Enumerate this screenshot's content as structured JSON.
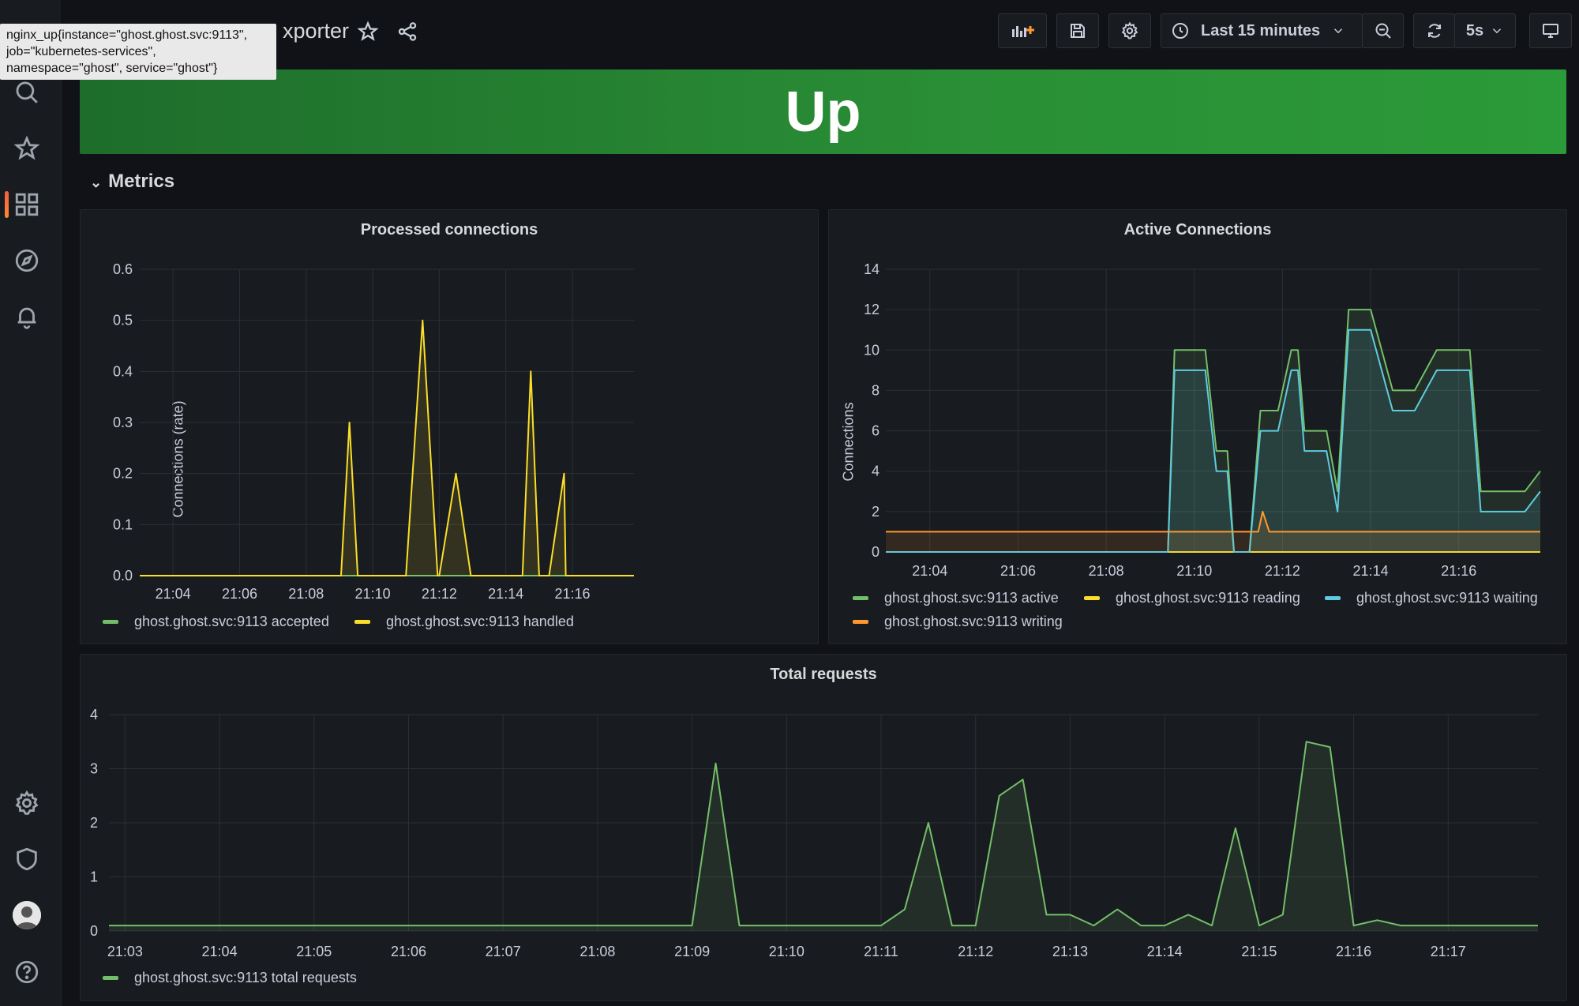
{
  "tooltip": {
    "lines": [
      "nginx_up{instance=\"ghost.ghost.svc:9113\",",
      "job=\"kubernetes-services\",",
      "namespace=\"ghost\", service=\"ghost\"}"
    ]
  },
  "header": {
    "title_partial": "xporter",
    "time_range": "Last 15 minutes",
    "refresh_interval": "5s"
  },
  "stat_panel": {
    "value": "Up",
    "color": "#2a8f36"
  },
  "row": {
    "title": "Metrics"
  },
  "colors": {
    "green": "#73bf69",
    "yellow": "#fade2a",
    "blue": "#5ecbe0",
    "orange": "#ff9830"
  },
  "chart_data": [
    {
      "type": "area",
      "title": "Processed connections",
      "ylabel": "Connections (rate)",
      "ylim": [
        0,
        0.6
      ],
      "yticks": [
        "0.0",
        "0.1",
        "0.2",
        "0.3",
        "0.4",
        "0.5",
        "0.6"
      ],
      "xticks": [
        "21:04",
        "21:06",
        "21:08",
        "21:10",
        "21:12",
        "21:14",
        "21:16"
      ],
      "xtick_minutes": [
        4,
        6,
        8,
        10,
        12,
        14,
        16
      ],
      "xlim_minutes": [
        3.0,
        17.85
      ],
      "series": [
        {
          "name": "ghost.ghost.svc:9113 accepted",
          "color": "#73bf69",
          "x": [
            3.0,
            17.85
          ],
          "y": [
            0,
            0
          ]
        },
        {
          "name": "ghost.ghost.svc:9113 handled",
          "color": "#fade2a",
          "x": [
            3.0,
            9.05,
            9.3,
            9.55,
            10.0,
            10.05,
            11.0,
            11.5,
            11.95,
            12.0,
            12.5,
            12.95,
            13.0,
            14.0,
            14.5,
            14.75,
            15.0,
            15.3,
            15.75,
            15.8,
            16.0,
            17.85
          ],
          "y": [
            0,
            0,
            0.3,
            0,
            0,
            0,
            0,
            0.5,
            0,
            0,
            0.2,
            0,
            0,
            0,
            0,
            0.4,
            0,
            0,
            0.2,
            0,
            0,
            0
          ]
        }
      ],
      "legend": [
        {
          "name": "ghost.ghost.svc:9113 accepted",
          "color": "#73bf69"
        },
        {
          "name": "ghost.ghost.svc:9113 handled",
          "color": "#fade2a"
        }
      ]
    },
    {
      "type": "area",
      "title": "Active Connections",
      "ylabel": "Connections",
      "ylim": [
        0,
        14
      ],
      "yticks": [
        "0",
        "2",
        "4",
        "6",
        "8",
        "10",
        "12",
        "14"
      ],
      "xticks": [
        "21:04",
        "21:06",
        "21:08",
        "21:10",
        "21:12",
        "21:14",
        "21:16"
      ],
      "xtick_minutes": [
        4,
        6,
        8,
        10,
        12,
        14,
        16
      ],
      "xlim_minutes": [
        3.0,
        17.85
      ],
      "series": [
        {
          "name": "ghost.ghost.svc:9113 active",
          "color": "#73bf69",
          "x": [
            3.0,
            9.2,
            9.4,
            9.55,
            10.0,
            10.25,
            10.5,
            10.75,
            10.9,
            11.25,
            11.5,
            11.75,
            11.9,
            12.2,
            12.35,
            12.5,
            12.6,
            13.0,
            13.25,
            13.5,
            13.75,
            14.0,
            14.5,
            14.75,
            15.0,
            15.5,
            15.75,
            16.0,
            16.25,
            16.5,
            17.0,
            17.25,
            17.5,
            17.85
          ],
          "y": [
            0,
            0,
            0,
            10,
            10,
            10,
            5,
            5,
            0,
            0,
            7,
            7,
            7,
            10,
            10,
            6,
            6,
            6,
            3,
            12,
            12,
            12,
            8,
            8,
            8,
            10,
            10,
            10,
            10,
            3,
            3,
            3,
            3,
            4
          ]
        },
        {
          "name": "ghost.ghost.svc:9113 reading",
          "color": "#fade2a",
          "x": [
            3.0,
            17.85
          ],
          "y": [
            0,
            0
          ]
        },
        {
          "name": "ghost.ghost.svc:9113 waiting",
          "color": "#5ecbe0",
          "x": [
            3.0,
            9.2,
            9.4,
            9.55,
            10.0,
            10.25,
            10.5,
            10.75,
            10.9,
            11.25,
            11.5,
            11.75,
            11.9,
            12.2,
            12.35,
            12.5,
            12.6,
            13.0,
            13.25,
            13.5,
            13.75,
            14.0,
            14.5,
            14.75,
            15.0,
            15.5,
            15.75,
            16.0,
            16.25,
            16.5,
            17.0,
            17.25,
            17.5,
            17.85
          ],
          "y": [
            0,
            0,
            0,
            9,
            9,
            9,
            4,
            4,
            0,
            0,
            6,
            6,
            6,
            9,
            9,
            5,
            5,
            5,
            2,
            11,
            11,
            11,
            7,
            7,
            7,
            9,
            9,
            9,
            9,
            2,
            2,
            2,
            2,
            3
          ]
        },
        {
          "name": "ghost.ghost.svc:9113 writing",
          "color": "#ff9830",
          "x": [
            3.0,
            11.2,
            11.45,
            11.55,
            11.7,
            17.85
          ],
          "y": [
            1,
            1,
            1,
            2,
            1,
            1
          ]
        }
      ],
      "legend": [
        {
          "name": "ghost.ghost.svc:9113 active",
          "color": "#73bf69"
        },
        {
          "name": "ghost.ghost.svc:9113 reading",
          "color": "#fade2a"
        },
        {
          "name": "ghost.ghost.svc:9113 waiting",
          "color": "#5ecbe0"
        },
        {
          "name": "ghost.ghost.svc:9113 writing",
          "color": "#ff9830"
        }
      ]
    },
    {
      "type": "area",
      "title": "Total requests",
      "ylabel": "",
      "ylim": [
        0,
        4
      ],
      "yticks": [
        "0",
        "1",
        "2",
        "3",
        "4"
      ],
      "xticks": [
        "21:03",
        "21:04",
        "21:05",
        "21:06",
        "21:07",
        "21:08",
        "21:09",
        "21:10",
        "21:11",
        "21:12",
        "21:13",
        "21:14",
        "21:15",
        "21:16",
        "21:17"
      ],
      "xtick_minutes": [
        3,
        4,
        5,
        6,
        7,
        8,
        9,
        10,
        11,
        12,
        13,
        14,
        15,
        16,
        17
      ],
      "xlim_minutes": [
        2.83,
        17.95
      ],
      "series": [
        {
          "name": "ghost.ghost.svc:9113 total requests",
          "color": "#73bf69",
          "x": [
            2.83,
            9.0,
            9.25,
            9.5,
            10.0,
            11.0,
            11.25,
            11.5,
            11.75,
            12.0,
            12.25,
            12.5,
            12.75,
            13.0,
            13.25,
            13.5,
            13.75,
            14.0,
            14.25,
            14.5,
            14.75,
            15.0,
            15.25,
            15.5,
            15.75,
            16.0,
            16.25,
            16.5,
            17.0,
            17.95
          ],
          "y": [
            0.1,
            0.1,
            3.1,
            0.1,
            0.1,
            0.1,
            0.4,
            2.0,
            0.1,
            0.1,
            2.5,
            2.8,
            0.3,
            0.3,
            0.1,
            0.4,
            0.1,
            0.1,
            0.3,
            0.1,
            1.9,
            0.1,
            0.3,
            3.5,
            3.4,
            0.1,
            0.2,
            0.1,
            0.1,
            0.1
          ]
        }
      ],
      "legend": [
        {
          "name": "ghost.ghost.svc:9113 total requests",
          "color": "#73bf69"
        }
      ]
    }
  ]
}
